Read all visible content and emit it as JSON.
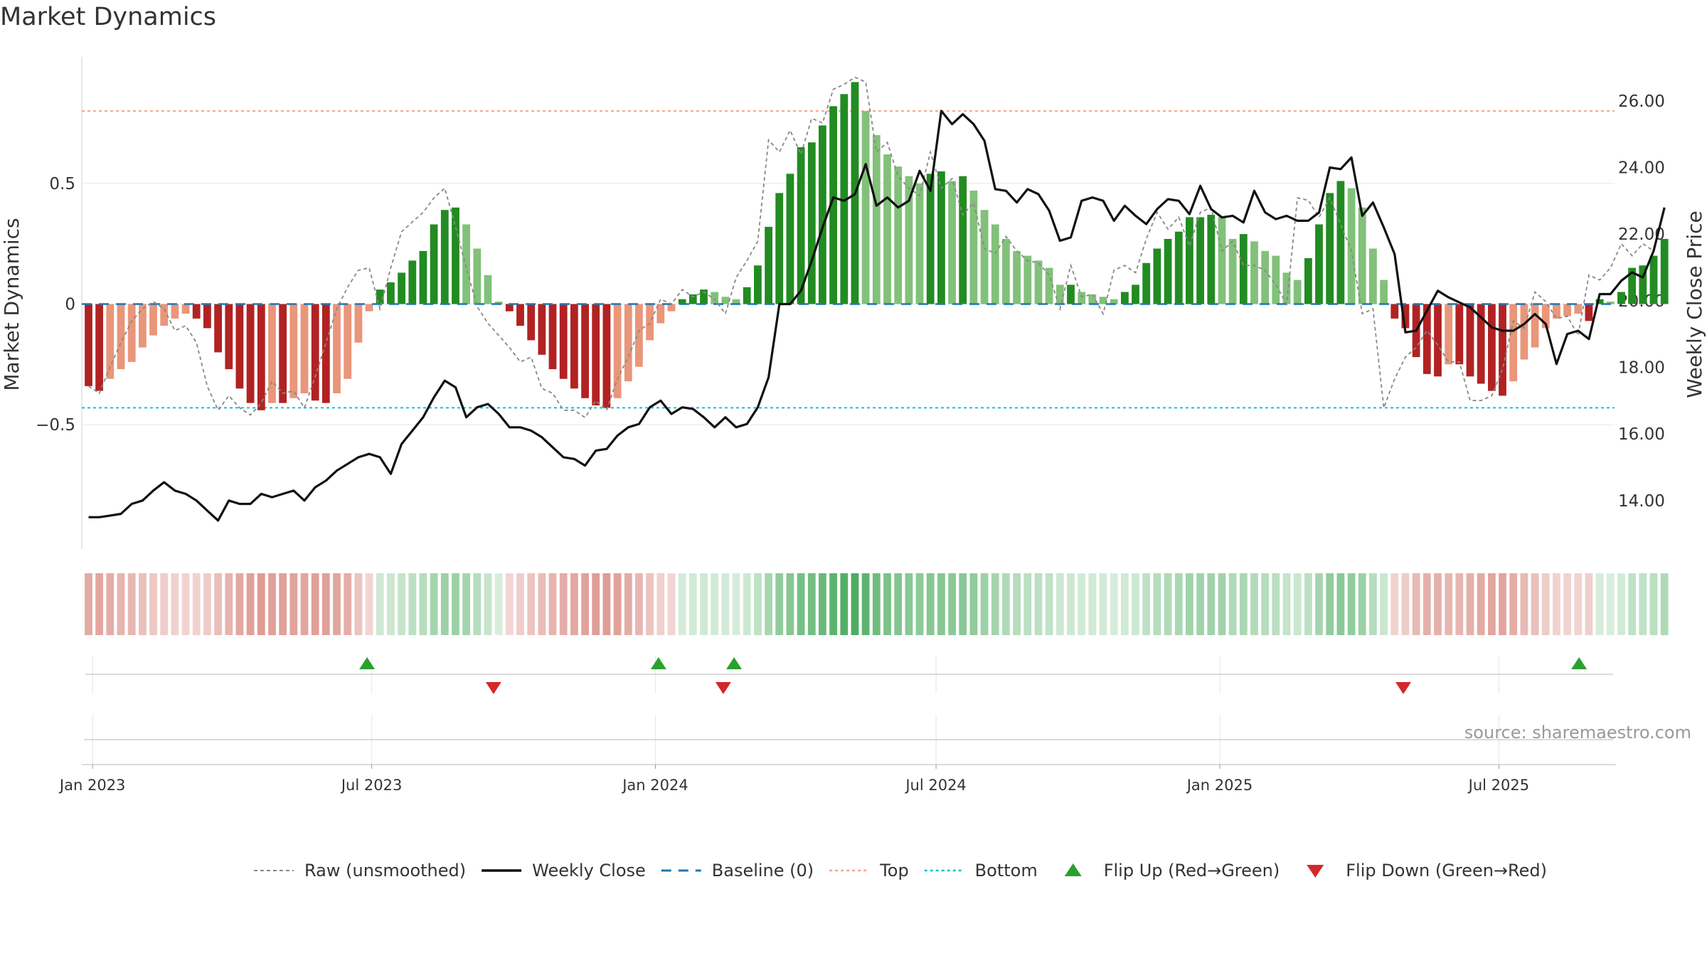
{
  "chart_data": {
    "type": "bar",
    "title": "Market Dynamics",
    "ylabel_left": "Market Dynamics",
    "ylabel_right": "Weekly Close Price",
    "left_yticks": [
      {
        "value": 0.5,
        "label": "0.5"
      },
      {
        "value": 0,
        "label": "0"
      },
      {
        "value": -0.5,
        "label": "−0.5"
      }
    ],
    "left_ylim": [
      -0.98,
      0.98
    ],
    "right_yticks": [
      {
        "value": 14,
        "label": "14.00"
      },
      {
        "value": 16,
        "label": "16.00"
      },
      {
        "value": 18,
        "label": "18.00"
      },
      {
        "value": 20,
        "label": "20.00"
      },
      {
        "value": 22,
        "label": "22.00"
      },
      {
        "value": 24,
        "label": "24.00"
      },
      {
        "value": 26,
        "label": "26.00"
      }
    ],
    "right_ylim": [
      12.8,
      27.0
    ],
    "x_start": "2022-12-25",
    "x_end": "2025-09-14",
    "x_ticks": [
      {
        "date": "2023-01-01",
        "label": "Jan 2023"
      },
      {
        "date": "2023-07-01",
        "label": "Jul 2023"
      },
      {
        "date": "2024-01-01",
        "label": "Jan 2024"
      },
      {
        "date": "2024-07-01",
        "label": "Jul 2024"
      },
      {
        "date": "2025-01-01",
        "label": "Jan 2025"
      },
      {
        "date": "2025-07-01",
        "label": "Jul 2025"
      }
    ],
    "top_level": 0.8,
    "bottom_level": -0.43,
    "baseline": 0,
    "first_week": "2022-12-26",
    "values": [
      -0.34,
      -0.36,
      -0.31,
      -0.27,
      -0.24,
      -0.18,
      -0.13,
      -0.09,
      -0.06,
      -0.04,
      -0.06,
      -0.1,
      -0.2,
      -0.27,
      -0.35,
      -0.41,
      -0.44,
      -0.41,
      -0.41,
      -0.39,
      -0.37,
      -0.4,
      -0.41,
      -0.37,
      -0.31,
      -0.16,
      -0.03,
      0.06,
      0.09,
      0.13,
      0.18,
      0.22,
      0.33,
      0.39,
      0.4,
      0.33,
      0.23,
      0.12,
      0.01,
      -0.03,
      -0.09,
      -0.15,
      -0.21,
      -0.27,
      -0.31,
      -0.35,
      -0.39,
      -0.42,
      -0.43,
      -0.39,
      -0.32,
      -0.26,
      -0.15,
      -0.08,
      -0.03,
      0.02,
      0.04,
      0.06,
      0.05,
      0.03,
      0.02,
      0.07,
      0.16,
      0.32,
      0.46,
      0.54,
      0.65,
      0.67,
      0.74,
      0.82,
      0.87,
      0.92,
      0.8,
      0.7,
      0.62,
      0.57,
      0.53,
      0.5,
      0.54,
      0.55,
      0.51,
      0.53,
      0.47,
      0.39,
      0.33,
      0.27,
      0.22,
      0.2,
      0.18,
      0.15,
      0.08,
      0.08,
      0.05,
      0.04,
      0.03,
      0.02,
      0.05,
      0.08,
      0.17,
      0.23,
      0.27,
      0.3,
      0.36,
      0.36,
      0.37,
      0.36,
      0.27,
      0.29,
      0.26,
      0.22,
      0.2,
      0.13,
      0.1,
      0.19,
      0.33,
      0.46,
      0.51,
      0.48,
      0.4,
      0.23,
      0.1,
      -0.06,
      -0.1,
      -0.22,
      -0.29,
      -0.3,
      -0.25,
      -0.25,
      -0.3,
      -0.33,
      -0.36,
      -0.38,
      -0.32,
      -0.23,
      -0.18,
      -0.1,
      -0.06,
      -0.05,
      -0.04,
      -0.07,
      0.02,
      0.01,
      0.05,
      0.15,
      0.16,
      0.2,
      0.27
    ],
    "raw_values": [
      -0.34,
      -0.37,
      -0.26,
      -0.16,
      -0.07,
      -0.02,
      0.01,
      -0.02,
      -0.11,
      -0.09,
      -0.16,
      -0.34,
      -0.44,
      -0.38,
      -0.43,
      -0.46,
      -0.41,
      -0.32,
      -0.37,
      -0.36,
      -0.43,
      -0.3,
      -0.16,
      -0.02,
      0.07,
      0.14,
      0.15,
      -0.02,
      0.15,
      0.3,
      0.34,
      0.38,
      0.44,
      0.48,
      0.32,
      0.15,
      -0.01,
      -0.08,
      -0.13,
      -0.18,
      -0.24,
      -0.22,
      -0.35,
      -0.37,
      -0.44,
      -0.44,
      -0.47,
      -0.4,
      -0.44,
      -0.31,
      -0.22,
      -0.11,
      -0.08,
      0.02,
      0.0,
      0.06,
      0.03,
      0.05,
      0.02,
      -0.04,
      0.11,
      0.18,
      0.26,
      0.68,
      0.63,
      0.72,
      0.62,
      0.77,
      0.75,
      0.89,
      0.91,
      0.94,
      0.92,
      0.63,
      0.67,
      0.53,
      0.48,
      0.45,
      0.63,
      0.48,
      0.52,
      0.37,
      0.42,
      0.23,
      0.21,
      0.28,
      0.22,
      0.18,
      0.17,
      0.12,
      -0.02,
      0.16,
      0.03,
      0.04,
      -0.04,
      0.14,
      0.16,
      0.13,
      0.27,
      0.38,
      0.31,
      0.36,
      0.24,
      0.38,
      0.4,
      0.22,
      0.26,
      0.16,
      0.16,
      0.14,
      0.08,
      0.0,
      0.44,
      0.43,
      0.36,
      0.44,
      0.33,
      0.22,
      -0.04,
      -0.02,
      -0.43,
      -0.31,
      -0.22,
      -0.18,
      -0.11,
      -0.17,
      -0.24,
      -0.24,
      -0.4,
      -0.4,
      -0.38,
      -0.27,
      -0.07,
      -0.1,
      0.05,
      0.01,
      -0.06,
      -0.05,
      -0.13,
      0.12,
      0.1,
      0.15,
      0.25,
      0.2,
      0.25,
      0.22
    ],
    "close_values": [
      13.5,
      13.5,
      13.55,
      13.6,
      13.9,
      14.0,
      14.3,
      14.55,
      14.3,
      14.2,
      14.0,
      13.7,
      13.4,
      14.0,
      13.9,
      13.9,
      14.2,
      14.1,
      14.2,
      14.3,
      14.0,
      14.4,
      14.6,
      14.9,
      15.1,
      15.3,
      15.4,
      15.3,
      14.8,
      15.7,
      16.1,
      16.5,
      17.1,
      17.6,
      17.4,
      16.5,
      16.8,
      16.9,
      16.6,
      16.2,
      16.2,
      16.1,
      15.9,
      15.6,
      15.3,
      15.25,
      15.05,
      15.5,
      15.55,
      15.95,
      16.2,
      16.3,
      16.8,
      17.0,
      16.6,
      16.8,
      16.75,
      16.5,
      16.2,
      16.5,
      16.2,
      16.3,
      16.8,
      17.7,
      19.9,
      19.9,
      20.3,
      21.2,
      22.2,
      23.1,
      23.0,
      23.2,
      24.1,
      22.85,
      23.1,
      22.8,
      23.0,
      23.9,
      23.3,
      25.7,
      25.3,
      25.6,
      25.3,
      24.8,
      23.35,
      23.3,
      22.95,
      23.35,
      23.2,
      22.7,
      21.8,
      21.9,
      23.0,
      23.1,
      23.0,
      22.4,
      22.85,
      22.55,
      22.3,
      22.75,
      23.05,
      23.0,
      22.6,
      23.45,
      22.75,
      22.5,
      22.55,
      22.35,
      23.3,
      22.65,
      22.45,
      22.55,
      22.4,
      22.4,
      22.65,
      24.0,
      23.95,
      24.3,
      22.55,
      22.95,
      22.2,
      21.4,
      19.05,
      19.1,
      19.7,
      20.3,
      20.1,
      19.95,
      19.8,
      19.5,
      19.2,
      19.1,
      19.1,
      19.3,
      19.6,
      19.3,
      18.1,
      19.0,
      19.1,
      18.85,
      20.2,
      20.2,
      20.6,
      20.85,
      20.7,
      21.5,
      22.8
    ],
    "regime_colors": [
      "#c0392b",
      "#2e9e44"
    ],
    "flip_up_dates": [
      "2023-06-28",
      "2024-01-03",
      "2024-02-21",
      "2025-08-22"
    ],
    "flip_down_dates": [
      "2023-09-18",
      "2024-02-14",
      "2025-04-30"
    ],
    "colors": {
      "strong_up": "#228b22",
      "weak_up": "#82c17a",
      "strong_down": "#b22222",
      "weak_down": "#e9967a",
      "weekly_close": "#111111",
      "raw": "#888888",
      "baseline": "#1f77b4",
      "top": "#f4a582",
      "bottom": "#17becf",
      "flip_up": "#2ca02c",
      "flip_down": "#d62728"
    },
    "source_text": "source: sharemaestro.com",
    "legend_position": "bottom",
    "legend": [
      {
        "label": "Raw (unsmoothed)",
        "kind": "raw"
      },
      {
        "label": "Weekly Close",
        "kind": "close"
      },
      {
        "label": "Baseline (0)",
        "kind": "baseline"
      },
      {
        "label": "Top",
        "kind": "top"
      },
      {
        "label": "Bottom",
        "kind": "bottom"
      },
      {
        "label": "Flip Up (Red→Green)",
        "kind": "flipup"
      },
      {
        "label": "Flip Down (Green→Red)",
        "kind": "flipdown"
      }
    ]
  }
}
